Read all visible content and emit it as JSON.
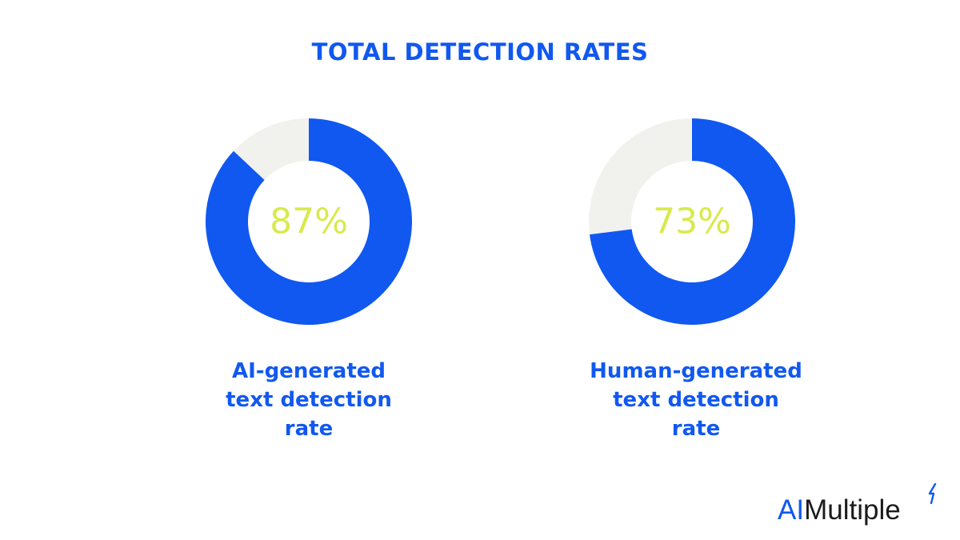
{
  "chart_data": {
    "type": "pie",
    "title": "TOTAL DETECTION RATES",
    "charts": [
      {
        "label": "AI-generated text detection rate",
        "label_lines": [
          "AI-generated",
          "text detection",
          "rate"
        ],
        "value": 87,
        "display": "87%"
      },
      {
        "label": "Human-generated text detection rate",
        "label_lines": [
          "Human-generated",
          "text detection",
          "rate"
        ],
        "value": 73,
        "display": "73%"
      }
    ],
    "colors": {
      "fill": "#1158f0",
      "remainder": "#f1f1ee",
      "value_text": "#d8ea4b",
      "title": "#1158f0"
    }
  },
  "brand": {
    "part1": "AI",
    "part2": "Multiple"
  }
}
